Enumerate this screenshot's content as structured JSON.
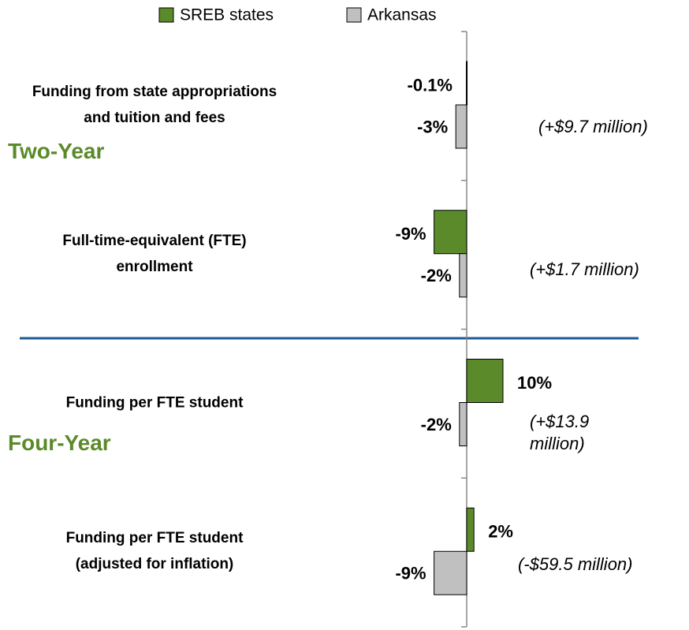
{
  "chart_data": {
    "type": "bar",
    "orientation": "horizontal",
    "categories": [
      "Funding from state appropriations\nand tuition and fees",
      "Full-time-equivalent (FTE)\nenrollment",
      "Funding per FTE student",
      "Funding per FTE student\n(adjusted for inflation)"
    ],
    "groups": [
      "Two-Year",
      "Four-Year"
    ],
    "series": [
      {
        "name": "SREB states",
        "color": "#5b8a2b",
        "values": [
          -0.1,
          -9,
          10,
          2
        ],
        "value_labels": [
          "-0.1%",
          "-9%",
          "10%",
          "2%"
        ]
      },
      {
        "name": "Arkansas",
        "color": "#c0c0c0",
        "values": [
          -3,
          -2,
          -2,
          -9
        ],
        "value_labels": [
          "-3%",
          "-2%",
          "-2%",
          "-9%"
        ]
      }
    ],
    "annotations": [
      "(+$9.7 million)",
      "(+$1.7 million)",
      "(+$13.9\nmillion)",
      "(-$59.5 million)"
    ],
    "xlim": [
      -20,
      20
    ],
    "legend": "top"
  }
}
